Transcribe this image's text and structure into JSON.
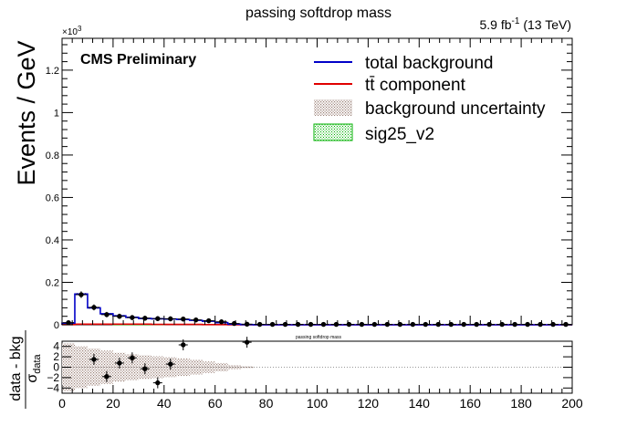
{
  "chart_data": {
    "type": "bar",
    "title": "passing softdrop mass",
    "lumi_label": "5.9 fb",
    "lumi_exp": "-1",
    "energy_label": "(13 TeV)",
    "cms_label": "CMS Preliminary",
    "y_multiplier_base": "×10",
    "y_multiplier_exp": "3",
    "ylabel": "Events / GeV",
    "xlim": [
      0,
      200
    ],
    "ylim": [
      0,
      1350
    ],
    "y_ticks": [
      0,
      200,
      400,
      600,
      800,
      1000,
      1200
    ],
    "y_tick_labels": [
      "0",
      "0.2",
      "0.4",
      "0.6",
      "0.8",
      "1",
      "1.2"
    ],
    "bin_edges": [
      0,
      5,
      10,
      15,
      20,
      25,
      30,
      35,
      40,
      45,
      50,
      55,
      60,
      65,
      70,
      75,
      80,
      85,
      90,
      95,
      100,
      105,
      110,
      115,
      120,
      125,
      130,
      135,
      140,
      145,
      150,
      155,
      160,
      165,
      170,
      175,
      180,
      185,
      190,
      195,
      200
    ],
    "series": [
      {
        "name": "total background",
        "color": "#0000c8",
        "values": [
          8,
          145,
          80,
          52,
          42,
          35,
          30,
          28,
          27,
          25,
          21,
          17,
          10,
          3,
          1,
          0,
          0,
          0,
          0,
          0,
          0,
          0,
          0,
          0,
          0,
          0,
          0,
          0,
          0,
          0,
          0,
          0,
          0,
          0,
          0,
          0,
          0,
          0,
          0,
          0
        ]
      },
      {
        "name": "tt̄ component",
        "color": "#e00000",
        "values": [
          1,
          3,
          3,
          3,
          3,
          3,
          3,
          2,
          2,
          2,
          2,
          1,
          1,
          0,
          0,
          0,
          0,
          0,
          0,
          0,
          0,
          0,
          0,
          0,
          0,
          0,
          0,
          0,
          0,
          0,
          0,
          0,
          0,
          0,
          0,
          0,
          0,
          0,
          0,
          0
        ]
      },
      {
        "name": "background uncertainty",
        "color": "#b8a8a0",
        "values": [
          4,
          6,
          5,
          4,
          4,
          3,
          3,
          3,
          3,
          3,
          2,
          2,
          2,
          1,
          1,
          0,
          0,
          0,
          0,
          0,
          0,
          0,
          0,
          0,
          0,
          0,
          0,
          0,
          0,
          0,
          0,
          0,
          0,
          0,
          0,
          0,
          0,
          0,
          0,
          0
        ]
      },
      {
        "name": "sig25_v2",
        "color": "#00b000",
        "values": [
          0,
          0,
          0,
          0,
          1,
          4,
          3,
          1,
          0,
          0,
          0,
          0,
          0,
          0,
          0,
          0,
          0,
          0,
          0,
          0,
          0,
          0,
          0,
          0,
          0,
          0,
          0,
          0,
          0,
          0,
          0,
          0,
          0,
          0,
          0,
          0,
          0,
          0,
          0,
          0
        ]
      },
      {
        "name": "data",
        "color": "#000000",
        "values": [
          10,
          142,
          82,
          48,
          40,
          34,
          31,
          29,
          28,
          27,
          23,
          19,
          14,
          6,
          3,
          2,
          2,
          2,
          2,
          2,
          2,
          2,
          2,
          2,
          2,
          2,
          2,
          2,
          2,
          2,
          2,
          2,
          2,
          2,
          2,
          2,
          2,
          2,
          2,
          2
        ]
      }
    ],
    "legend_position": "top-right",
    "grid": false,
    "ratio_panel": {
      "title": "passing softdrop mass",
      "ylabel_main": "data - bkg",
      "ylabel_den": "σ",
      "ylabel_den_sub": "data",
      "ylim": [
        -5,
        5
      ],
      "y_ticks": [
        -4,
        -2,
        0,
        2,
        4
      ],
      "xlabel": "",
      "x_ticks": [
        0,
        20,
        40,
        60,
        80,
        100,
        120,
        140,
        160,
        180,
        200
      ],
      "points": [
        {
          "x": 12.5,
          "y": 1.5
        },
        {
          "x": 17.5,
          "y": -1.8
        },
        {
          "x": 22.5,
          "y": 0.8
        },
        {
          "x": 27.5,
          "y": 1.8
        },
        {
          "x": 32.5,
          "y": -0.3
        },
        {
          "x": 37.5,
          "y": -3.0
        },
        {
          "x": 42.5,
          "y": 0.6
        },
        {
          "x": 47.5,
          "y": 4.3
        },
        {
          "x": 72.5,
          "y": 4.8
        }
      ],
      "uncertainty_halfwidth": [
        4.6,
        4.0,
        3.6,
        3.2,
        2.8,
        2.5,
        2.3,
        2.1,
        1.9,
        1.7,
        1.4,
        1.1,
        0.8,
        0.4,
        0.2,
        0,
        0,
        0,
        0,
        0,
        0,
        0,
        0,
        0,
        0,
        0,
        0,
        0,
        0,
        0,
        0,
        0,
        0,
        0,
        0,
        0,
        0,
        0,
        0,
        0
      ]
    }
  }
}
